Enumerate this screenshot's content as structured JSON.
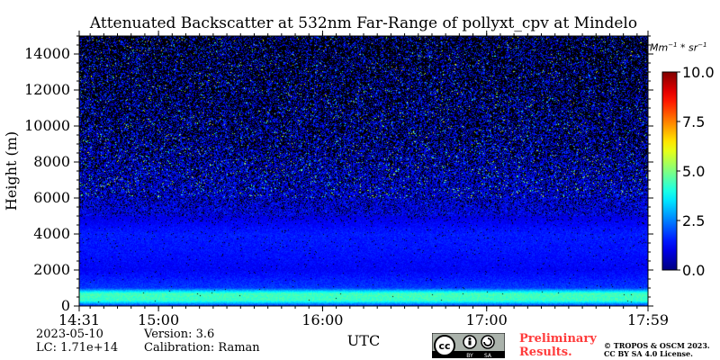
{
  "chart_data": {
    "type": "heatmap",
    "title": "Attenuated Backscatter at 532nm Far-Range of pollyxt_cpv at Mindelo",
    "xlabel": "UTC",
    "ylabel": "Height (m)",
    "x_ticks": [
      "14:31",
      "15:00",
      "16:00",
      "17:00",
      "17:59"
    ],
    "x_tick_hours": [
      14.5167,
      15.0,
      16.0,
      17.0,
      17.9833
    ],
    "y_ticks": [
      0,
      2000,
      4000,
      6000,
      8000,
      10000,
      12000,
      14000
    ],
    "ylim": [
      0,
      15000
    ],
    "colorbar": {
      "unit": "Mm-1*sr-1",
      "ticks": [
        "0.0",
        "2.5",
        "5.0",
        "7.5",
        "10.0"
      ],
      "tick_values": [
        0,
        2.5,
        5.0,
        7.5,
        10.0
      ],
      "range": [
        0,
        10
      ],
      "colormap": "jet"
    },
    "profile": [
      {
        "height_m": 0,
        "value": 1.5
      },
      {
        "height_m": 300,
        "value": 4.3
      },
      {
        "height_m": 700,
        "value": 4.4
      },
      {
        "height_m": 1000,
        "value": 1.8
      },
      {
        "height_m": 2000,
        "value": 1.2
      },
      {
        "height_m": 3000,
        "value": 1.4
      },
      {
        "height_m": 4000,
        "value": 1.5
      },
      {
        "height_m": 5000,
        "value": 1.0
      },
      {
        "height_m": 7000,
        "value": 1.1
      },
      {
        "height_m": 10000,
        "value": 1.2
      },
      {
        "height_m": 15000,
        "value": 1.3
      }
    ],
    "noise_fraction": [
      {
        "height_m": 0,
        "value": 0.0
      },
      {
        "height_m": 4500,
        "value": 0.02
      },
      {
        "height_m": 6000,
        "value": 0.25
      },
      {
        "height_m": 9000,
        "value": 0.5
      },
      {
        "height_m": 12000,
        "value": 0.6
      },
      {
        "height_m": 15000,
        "value": 0.68
      }
    ],
    "missing_color": "#000000"
  },
  "unit_label": {
    "base": "Mm",
    "exp1": "−1",
    "mid": " * sr",
    "exp2": "−1"
  },
  "info": {
    "date": "2023-05-10",
    "version": "Version: 3.6",
    "lc": "LC: 1.71e+14",
    "calibration": "Calibration: Raman"
  },
  "preliminary": [
    "Preliminary",
    "Results."
  ],
  "copyright": [
    "© TROPOS & OSCM 2023.",
    "CC BY SA 4.0 License."
  ],
  "cc_logo": {
    "text": "cc",
    "by": "BY",
    "sa": "SA"
  }
}
